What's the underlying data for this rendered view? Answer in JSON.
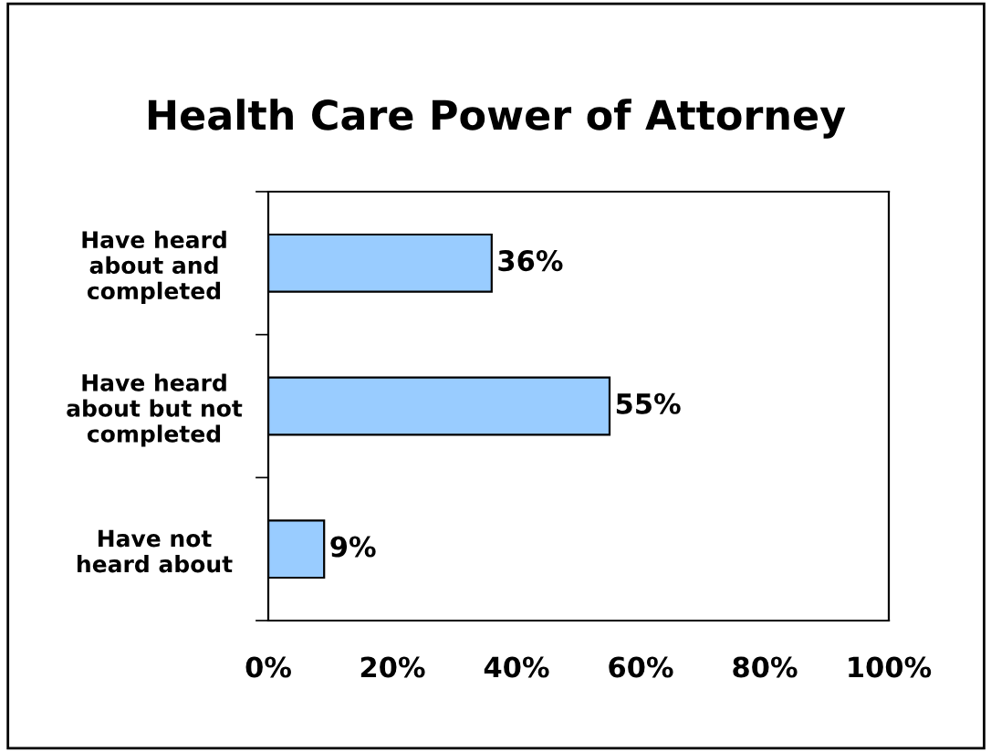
{
  "chart_data": {
    "type": "bar",
    "orientation": "horizontal",
    "title": "Health Care Power of Attorney",
    "categories": [
      "Have heard\nabout and\ncompleted",
      "Have heard\nabout but not\ncompleted",
      "Have not\nheard about"
    ],
    "values": [
      36,
      55,
      9
    ],
    "value_labels": [
      "36%",
      "55%",
      "9%"
    ],
    "color": "#99ccff",
    "xlim": [
      0,
      100
    ],
    "xticks": [
      {
        "value": 0,
        "label": "0%"
      },
      {
        "value": 20,
        "label": "20%"
      },
      {
        "value": 40,
        "label": "40%"
      },
      {
        "value": 60,
        "label": "60%"
      },
      {
        "value": 80,
        "label": "80%"
      },
      {
        "value": 100,
        "label": "100%"
      }
    ],
    "grid": false,
    "legend": false
  }
}
